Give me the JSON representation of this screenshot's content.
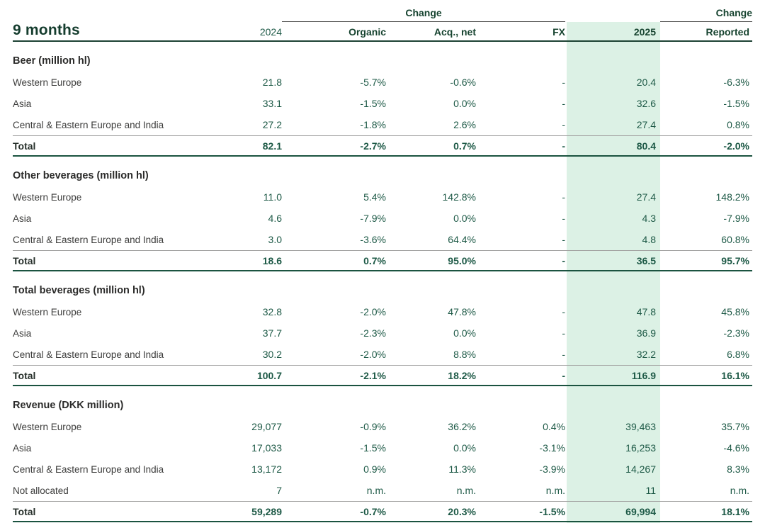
{
  "header": {
    "title": "9 months",
    "change_group": "Change",
    "change_reported": "Change",
    "cols": {
      "y2024": "2024",
      "organic": "Organic",
      "acq": "Acq., net",
      "fx": "FX",
      "y2025": "2025",
      "reported": "Reported"
    }
  },
  "sections": [
    {
      "title": "Beer (million hl)",
      "rows": [
        {
          "label": "Western Europe",
          "y2024": "21.8",
          "organic": "-5.7%",
          "acq": "-0.6%",
          "fx": "-",
          "y2025": "20.4",
          "reported": "-6.3%"
        },
        {
          "label": "Asia",
          "y2024": "33.1",
          "organic": "-1.5%",
          "acq": "0.0%",
          "fx": "-",
          "y2025": "32.6",
          "reported": "-1.5%"
        },
        {
          "label": "Central & Eastern Europe and India",
          "y2024": "27.2",
          "organic": "-1.8%",
          "acq": "2.6%",
          "fx": "-",
          "y2025": "27.4",
          "reported": "0.8%"
        }
      ],
      "total": {
        "label": "Total",
        "y2024": "82.1",
        "organic": "-2.7%",
        "acq": "0.7%",
        "fx": "-",
        "y2025": "80.4",
        "reported": "-2.0%"
      }
    },
    {
      "title": "Other beverages (million hl)",
      "rows": [
        {
          "label": "Western Europe",
          "y2024": "11.0",
          "organic": "5.4%",
          "acq": "142.8%",
          "fx": "-",
          "y2025": "27.4",
          "reported": "148.2%"
        },
        {
          "label": "Asia",
          "y2024": "4.6",
          "organic": "-7.9%",
          "acq": "0.0%",
          "fx": "-",
          "y2025": "4.3",
          "reported": "-7.9%"
        },
        {
          "label": "Central & Eastern Europe and India",
          "y2024": "3.0",
          "organic": "-3.6%",
          "acq": "64.4%",
          "fx": "-",
          "y2025": "4.8",
          "reported": "60.8%"
        }
      ],
      "total": {
        "label": "Total",
        "y2024": "18.6",
        "organic": "0.7%",
        "acq": "95.0%",
        "fx": "-",
        "y2025": "36.5",
        "reported": "95.7%"
      }
    },
    {
      "title": "Total beverages (million hl)",
      "rows": [
        {
          "label": "Western Europe",
          "y2024": "32.8",
          "organic": "-2.0%",
          "acq": "47.8%",
          "fx": "-",
          "y2025": "47.8",
          "reported": "45.8%"
        },
        {
          "label": "Asia",
          "y2024": "37.7",
          "organic": "-2.3%",
          "acq": "0.0%",
          "fx": "-",
          "y2025": "36.9",
          "reported": "-2.3%"
        },
        {
          "label": "Central & Eastern Europe and India",
          "y2024": "30.2",
          "organic": "-2.0%",
          "acq": "8.8%",
          "fx": "-",
          "y2025": "32.2",
          "reported": "6.8%"
        }
      ],
      "total": {
        "label": "Total",
        "y2024": "100.7",
        "organic": "-2.1%",
        "acq": "18.2%",
        "fx": "-",
        "y2025": "116.9",
        "reported": "16.1%"
      }
    },
    {
      "title": "Revenue (DKK million)",
      "rows": [
        {
          "label": "Western Europe",
          "y2024": "29,077",
          "organic": "-0.9%",
          "acq": "36.2%",
          "fx": "0.4%",
          "y2025": "39,463",
          "reported": "35.7%"
        },
        {
          "label": "Asia",
          "y2024": "17,033",
          "organic": "-1.5%",
          "acq": "0.0%",
          "fx": "-3.1%",
          "y2025": "16,253",
          "reported": "-4.6%"
        },
        {
          "label": "Central & Eastern Europe and India",
          "y2024": "13,172",
          "organic": "0.9%",
          "acq": "11.3%",
          "fx": "-3.9%",
          "y2025": "14,267",
          "reported": "8.3%"
        },
        {
          "label": "Not allocated",
          "y2024": "7",
          "organic": "n.m.",
          "acq": "n.m.",
          "fx": "n.m.",
          "y2025": "11",
          "reported": "n.m."
        }
      ],
      "total": {
        "label": "Total",
        "y2024": "59,289",
        "organic": "-0.7%",
        "acq": "20.3%",
        "fx": "-1.5%",
        "y2025": "69,994",
        "reported": "18.1%"
      }
    }
  ],
  "colors": {
    "brand_dark_green": "#153D2E",
    "value_green": "#1D5946",
    "label_gray": "#3C3C3B",
    "highlight_green": "#DCF1E5",
    "rule_gray": "#A3A3A2",
    "total_rule_green": "#1B5340"
  }
}
